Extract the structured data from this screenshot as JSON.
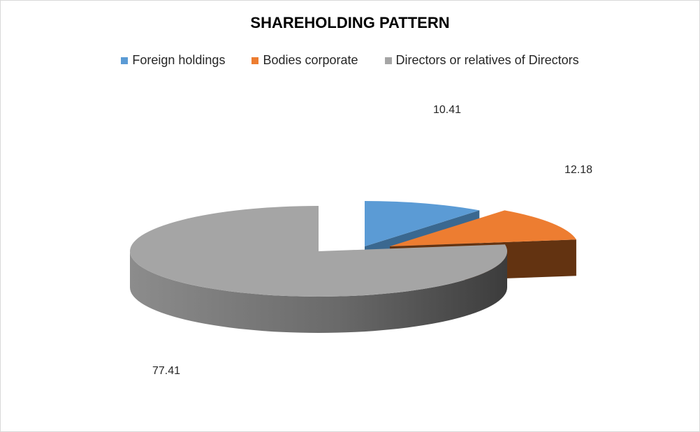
{
  "chart_data": {
    "type": "pie",
    "title": "SHAREHOLDING PATTERN",
    "legend_position": "top",
    "three_d": true,
    "exploded": true,
    "slices": [
      {
        "label": "Foreign holdings",
        "value": 10.41,
        "value_label": "10.41",
        "color": "#5b9bd5",
        "side_color": "#3a6890"
      },
      {
        "label": "Bodies corporate",
        "value": 12.18,
        "value_label": "12.18",
        "color": "#ed7d31",
        "side_color": "#633311"
      },
      {
        "label": "Directors or relatives of Directors",
        "value": 77.41,
        "value_label": "77.41",
        "color": "#a5a5a5",
        "side_color": "#6e6e6e"
      }
    ]
  }
}
